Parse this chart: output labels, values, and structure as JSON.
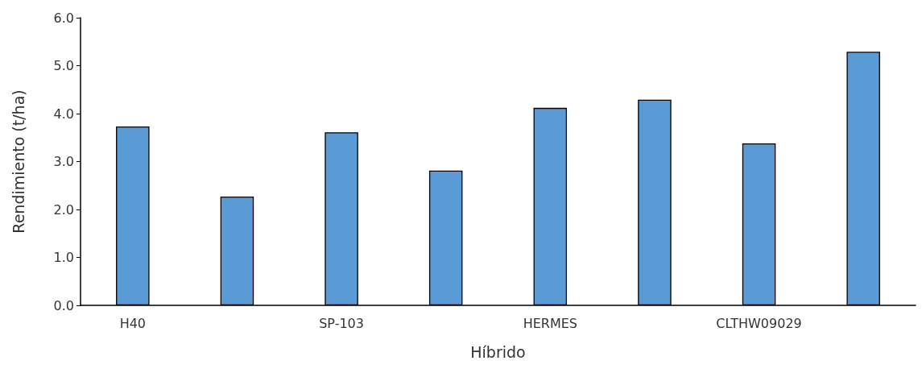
{
  "chart_data": {
    "type": "bar",
    "xlabel": "Híbrido",
    "ylabel": "Rendimiento (t/ha)",
    "categories": [
      "H40",
      null,
      "SP-103",
      null,
      "HERMES",
      null,
      "CLTHW09029",
      null
    ],
    "values": [
      3.73,
      2.27,
      3.61,
      2.81,
      4.12,
      4.29,
      3.38,
      5.29
    ],
    "color": "#5b9bd5",
    "ylim": [
      0,
      6
    ],
    "yticks": [
      {
        "value": 0,
        "label": "0.0"
      },
      {
        "value": 1,
        "label": "1.0"
      },
      {
        "value": 2,
        "label": "2.0"
      },
      {
        "value": 3,
        "label": "3.0"
      },
      {
        "value": 4,
        "label": "4.0"
      },
      {
        "value": 5,
        "label": "5.0"
      },
      {
        "value": 6,
        "label": "6.0"
      }
    ],
    "grid": false
  }
}
